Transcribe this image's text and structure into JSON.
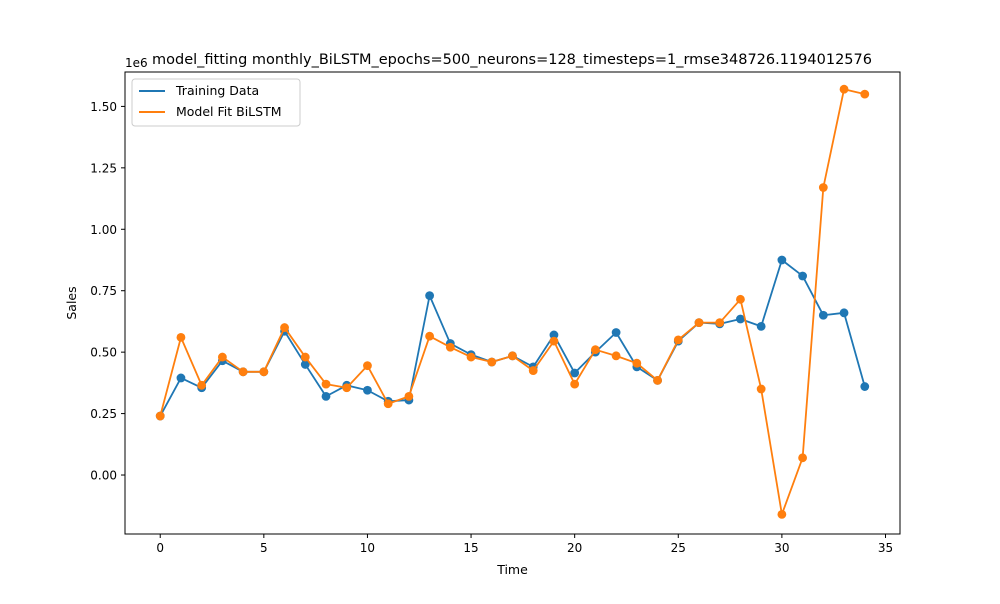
{
  "chart_data": {
    "type": "line",
    "title": "model_fitting monthly_BiLSTM_epochs=500_neurons=128_timesteps=1_rmse348726.1194012576",
    "xlabel": "Time",
    "ylabel": "Sales",
    "y_offset_label": "1e6",
    "xlim": [
      -1.7,
      35.7
    ],
    "ylim": [
      -0.24,
      1.64
    ],
    "x_ticks": [
      0,
      5,
      10,
      15,
      20,
      25,
      30,
      35
    ],
    "y_ticks": [
      0.0,
      0.25,
      0.5,
      0.75,
      1.0,
      1.25,
      1.5
    ],
    "x_tick_labels": [
      "0",
      "5",
      "10",
      "15",
      "20",
      "25",
      "30",
      "35"
    ],
    "y_tick_labels": [
      "0.00",
      "0.25",
      "0.50",
      "0.75",
      "1.00",
      "1.25",
      "1.50"
    ],
    "grid": false,
    "legend_position": "upper-left",
    "x": [
      0,
      1,
      2,
      3,
      4,
      5,
      6,
      7,
      8,
      9,
      10,
      11,
      12,
      13,
      14,
      15,
      16,
      17,
      18,
      19,
      20,
      21,
      22,
      23,
      24,
      25,
      26,
      27,
      28,
      29,
      30,
      31,
      32,
      33,
      34
    ],
    "series": [
      {
        "name": "Training Data",
        "color": "#1f77b4",
        "values": [
          0.24,
          0.395,
          0.355,
          0.465,
          0.42,
          0.42,
          0.585,
          0.45,
          0.32,
          0.365,
          0.345,
          0.3,
          0.305,
          0.73,
          0.535,
          0.49,
          0.46,
          0.485,
          0.44,
          0.57,
          0.415,
          0.5,
          0.58,
          0.44,
          0.385,
          0.545,
          0.62,
          0.615,
          0.635,
          0.605,
          0.875,
          0.81,
          0.65,
          0.66,
          0.36
        ]
      },
      {
        "name": "Model Fit BiLSTM",
        "color": "#ff7f0e",
        "values": [
          0.24,
          0.56,
          0.365,
          0.48,
          0.42,
          0.42,
          0.6,
          0.48,
          0.37,
          0.355,
          0.445,
          0.29,
          0.32,
          0.565,
          0.52,
          0.48,
          0.46,
          0.485,
          0.425,
          0.545,
          0.37,
          0.51,
          0.485,
          0.455,
          0.385,
          0.55,
          0.62,
          0.62,
          0.715,
          0.35,
          -0.16,
          0.07,
          1.17,
          1.57,
          1.55
        ]
      }
    ]
  }
}
